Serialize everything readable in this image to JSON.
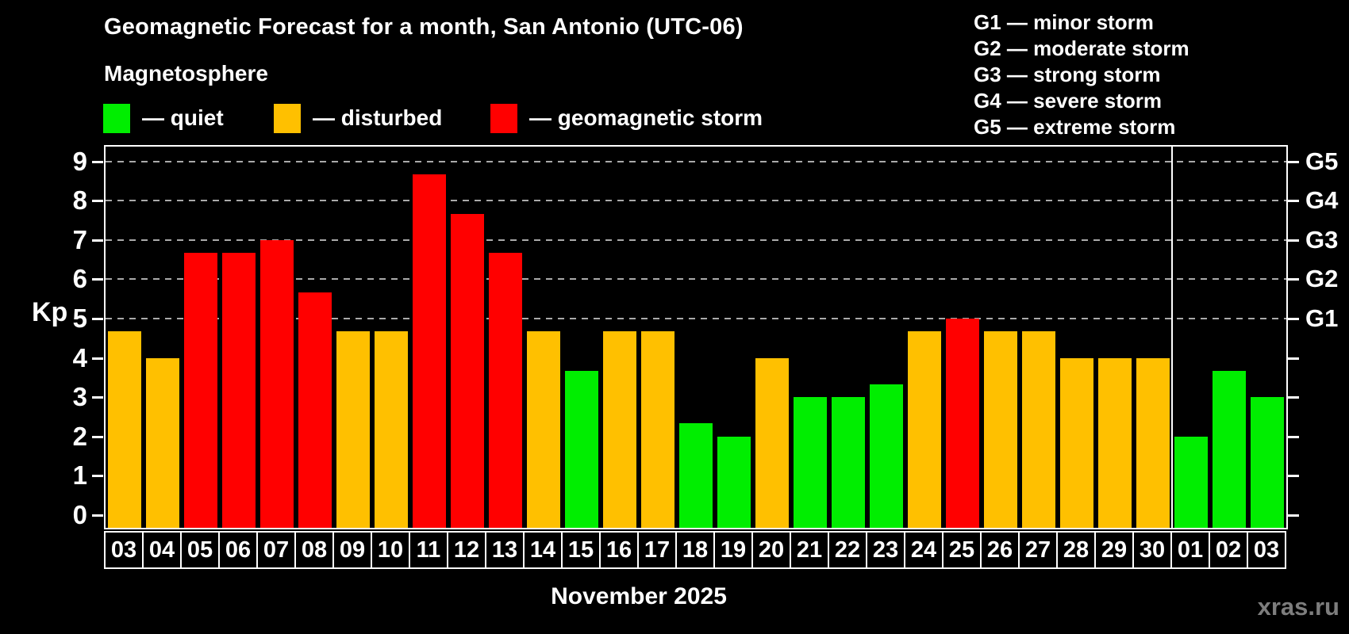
{
  "page": {
    "title": "Geomagnetic Forecast for a month, San Antonio (UTC-06)",
    "subtitle": "Magnetosphere",
    "watermark": "xras.ru"
  },
  "legend": {
    "items": [
      {
        "key": "quiet",
        "label": "— quiet",
        "color": "#00ee00"
      },
      {
        "key": "disturbed",
        "label": "— disturbed",
        "color": "#ffc000"
      },
      {
        "key": "storm",
        "label": "— geomagnetic storm",
        "color": "#ff0000"
      }
    ]
  },
  "g_legend": {
    "lines": [
      "G1 — minor storm",
      "G2 — moderate storm",
      "G3 — strong storm",
      "G4 — severe storm",
      "G5 — extreme storm"
    ]
  },
  "chart_data": {
    "type": "bar",
    "title": "Geomagnetic Forecast for a month, San Antonio (UTC-06)",
    "subtitle": "Magnetosphere",
    "xlabel": "November 2025",
    "ylabel": "Kp",
    "ylim": [
      -0.35,
      9.4
    ],
    "y_ticks": [
      0,
      1,
      2,
      3,
      4,
      5,
      6,
      7,
      8,
      9
    ],
    "gridlines": [
      5,
      6,
      7,
      8,
      9
    ],
    "grid_style": "dashed horizontal lines at storm thresholds only",
    "legend_position": "top-left",
    "right_axis_labels": [
      {
        "value": 5,
        "label": "G1"
      },
      {
        "value": 6,
        "label": "G2"
      },
      {
        "value": 7,
        "label": "G3"
      },
      {
        "value": 8,
        "label": "G4"
      },
      {
        "value": 9,
        "label": "G5"
      }
    ],
    "colors": {
      "quiet": "#00ee00",
      "disturbed": "#ffc000",
      "storm": "#ff0000"
    },
    "month_divider_after_index": 27,
    "categories": [
      "03",
      "04",
      "05",
      "06",
      "07",
      "08",
      "09",
      "10",
      "11",
      "12",
      "13",
      "14",
      "15",
      "16",
      "17",
      "18",
      "19",
      "20",
      "21",
      "22",
      "23",
      "24",
      "25",
      "26",
      "27",
      "28",
      "29",
      "30",
      "01",
      "02",
      "03"
    ],
    "values": [
      4.67,
      4,
      6.67,
      6.67,
      7,
      5.67,
      4.67,
      4.67,
      8.67,
      7.67,
      6.67,
      4.67,
      3.67,
      4.67,
      4.67,
      2.33,
      2,
      4,
      3,
      3,
      3.33,
      4.67,
      5,
      4.67,
      4.67,
      4,
      4,
      4,
      2,
      3.67,
      3
    ],
    "levels": [
      "disturbed",
      "disturbed",
      "storm",
      "storm",
      "storm",
      "storm",
      "disturbed",
      "disturbed",
      "storm",
      "storm",
      "storm",
      "disturbed",
      "quiet",
      "disturbed",
      "disturbed",
      "quiet",
      "quiet",
      "disturbed",
      "quiet",
      "quiet",
      "quiet",
      "disturbed",
      "storm",
      "disturbed",
      "disturbed",
      "disturbed",
      "disturbed",
      "disturbed",
      "quiet",
      "quiet",
      "quiet"
    ]
  }
}
